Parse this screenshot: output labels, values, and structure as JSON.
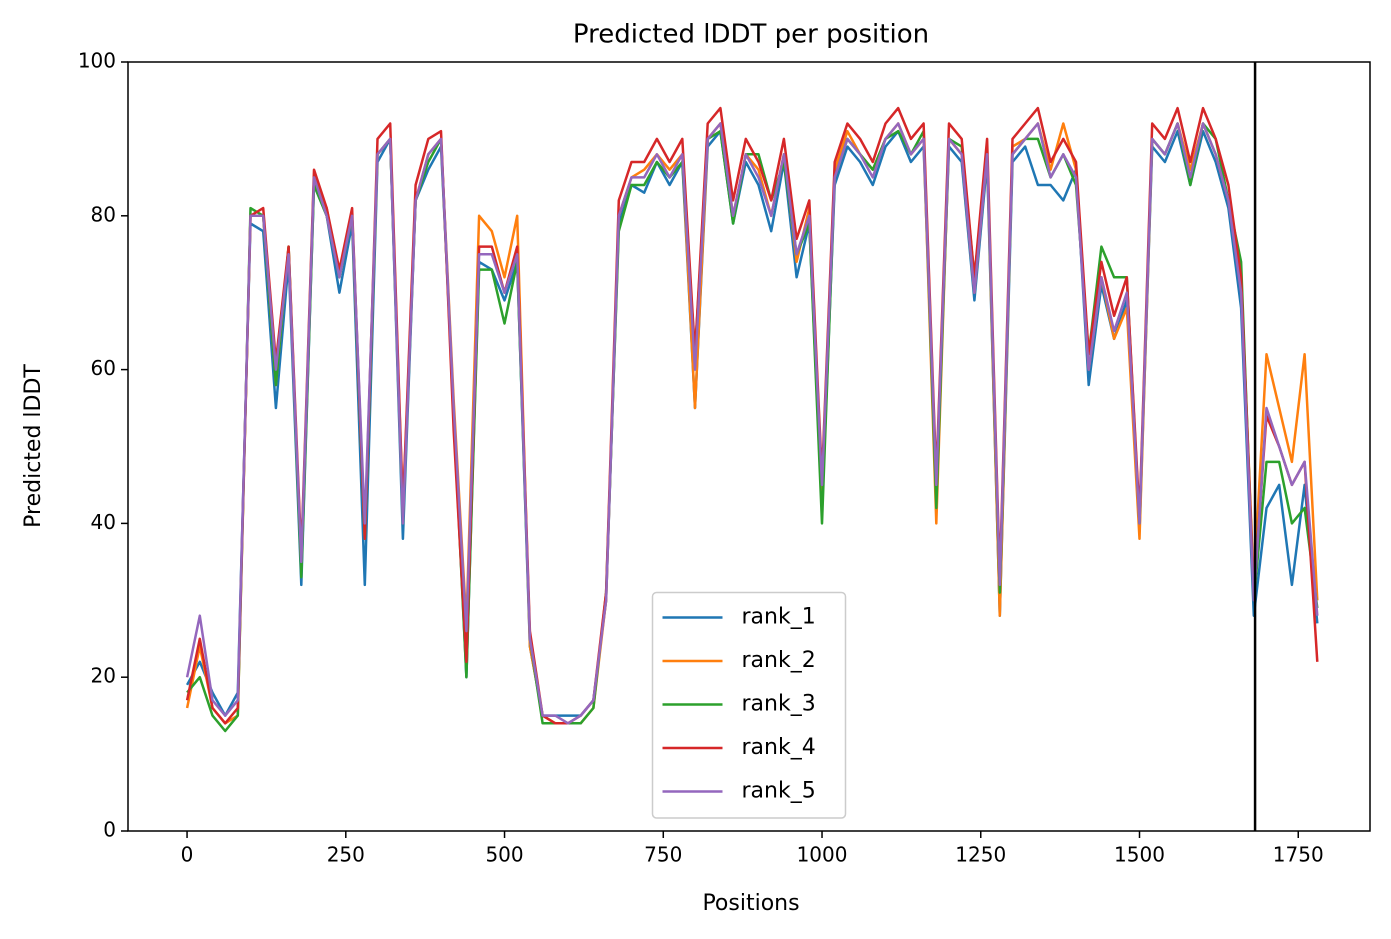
{
  "chart_data": {
    "type": "line",
    "title": "Predicted lDDT per position",
    "x_label": "Positions",
    "y_label": "Predicted lDDT",
    "x": [
      0,
      20,
      40,
      60,
      80,
      100,
      120,
      140,
      160,
      180,
      200,
      220,
      240,
      260,
      280,
      300,
      320,
      340,
      360,
      380,
      400,
      420,
      440,
      460,
      480,
      500,
      520,
      540,
      560,
      580,
      600,
      620,
      640,
      660,
      680,
      700,
      720,
      740,
      760,
      780,
      800,
      820,
      840,
      860,
      880,
      900,
      920,
      940,
      960,
      980,
      1000,
      1020,
      1040,
      1060,
      1080,
      1100,
      1120,
      1140,
      1160,
      1180,
      1200,
      1220,
      1240,
      1260,
      1280,
      1300,
      1320,
      1340,
      1360,
      1380,
      1400,
      1420,
      1440,
      1460,
      1480,
      1500,
      1520,
      1540,
      1560,
      1580,
      1600,
      1620,
      1640,
      1660,
      1680,
      1700,
      1720,
      1740,
      1760,
      1780
    ],
    "series": [
      {
        "name": "rank_1",
        "color": "#1f77b4",
        "values": [
          19,
          22,
          18,
          15,
          18,
          79,
          78,
          55,
          74,
          32,
          84,
          80,
          70,
          79,
          32,
          87,
          90,
          38,
          82,
          86,
          89,
          55,
          20,
          74,
          73,
          69,
          74,
          24,
          15,
          15,
          15,
          15,
          17,
          30,
          79,
          84,
          83,
          87,
          84,
          87,
          55,
          89,
          91,
          79,
          87,
          84,
          78,
          87,
          72,
          79,
          42,
          84,
          89,
          87,
          84,
          89,
          91,
          87,
          89,
          44,
          89,
          87,
          69,
          87,
          28,
          87,
          89,
          84,
          84,
          82,
          86,
          58,
          71,
          64,
          69,
          39,
          89,
          87,
          91,
          84,
          91,
          87,
          81,
          68,
          28,
          42,
          45,
          32,
          45,
          27
        ]
      },
      {
        "name": "rank_2",
        "color": "#ff7f0e",
        "values": [
          16,
          24,
          16,
          14,
          15,
          80,
          80,
          58,
          76,
          34,
          85,
          81,
          72,
          80,
          38,
          88,
          90,
          42,
          82,
          88,
          90,
          56,
          27,
          80,
          78,
          72,
          80,
          24,
          15,
          14,
          14,
          14,
          16,
          30,
          80,
          85,
          86,
          88,
          86,
          88,
          55,
          90,
          92,
          80,
          88,
          86,
          80,
          88,
          74,
          81,
          44,
          86,
          91,
          88,
          86,
          90,
          92,
          88,
          90,
          40,
          90,
          88,
          70,
          88,
          28,
          89,
          90,
          92,
          86,
          92,
          86,
          60,
          72,
          64,
          68,
          38,
          90,
          88,
          92,
          86,
          92,
          88,
          82,
          72,
          32,
          62,
          55,
          48,
          62,
          30
        ]
      },
      {
        "name": "rank_3",
        "color": "#2ca02c",
        "values": [
          18,
          20,
          15,
          13,
          15,
          81,
          80,
          58,
          76,
          33,
          84,
          80,
          72,
          80,
          38,
          88,
          90,
          40,
          82,
          87,
          90,
          54,
          20,
          73,
          73,
          66,
          74,
          25,
          14,
          14,
          14,
          14,
          16,
          31,
          78,
          84,
          84,
          87,
          85,
          87,
          62,
          90,
          91,
          79,
          88,
          88,
          82,
          87,
          75,
          79,
          40,
          85,
          90,
          88,
          86,
          90,
          91,
          88,
          91,
          42,
          90,
          89,
          72,
          88,
          31,
          88,
          90,
          90,
          85,
          88,
          84,
          62,
          76,
          72,
          72,
          40,
          90,
          88,
          92,
          84,
          92,
          90,
          82,
          74,
          30,
          48,
          48,
          40,
          42,
          29
        ]
      },
      {
        "name": "rank_4",
        "color": "#d62728",
        "values": [
          17,
          25,
          16,
          14,
          16,
          80,
          81,
          61,
          76,
          36,
          86,
          81,
          73,
          81,
          38,
          90,
          92,
          42,
          84,
          90,
          91,
          52,
          22,
          76,
          76,
          70,
          76,
          26,
          15,
          14,
          14,
          15,
          17,
          31,
          82,
          87,
          87,
          90,
          87,
          90,
          62,
          92,
          94,
          82,
          90,
          87,
          82,
          90,
          77,
          82,
          46,
          87,
          92,
          90,
          87,
          92,
          94,
          90,
          92,
          46,
          92,
          90,
          72,
          90,
          33,
          90,
          92,
          94,
          87,
          90,
          87,
          62,
          74,
          67,
          72,
          41,
          92,
          90,
          94,
          87,
          94,
          90,
          84,
          72,
          31,
          54,
          50,
          45,
          48,
          22
        ]
      },
      {
        "name": "rank_5",
        "color": "#9467bd",
        "values": [
          20,
          28,
          17,
          15,
          17,
          80,
          80,
          60,
          75,
          35,
          85,
          80,
          72,
          80,
          40,
          88,
          90,
          40,
          82,
          88,
          90,
          55,
          26,
          75,
          75,
          70,
          75,
          25,
          15,
          15,
          14,
          15,
          17,
          30,
          80,
          85,
          85,
          88,
          85,
          88,
          60,
          90,
          92,
          80,
          88,
          85,
          80,
          88,
          75,
          80,
          45,
          85,
          90,
          88,
          85,
          90,
          92,
          88,
          90,
          45,
          90,
          88,
          70,
          88,
          32,
          88,
          90,
          92,
          85,
          88,
          85,
          60,
          72,
          65,
          70,
          40,
          90,
          88,
          92,
          85,
          92,
          88,
          82,
          70,
          30,
          55,
          50,
          45,
          48,
          28
        ]
      }
    ],
    "vline": {
      "value": 1682,
      "color": "#000000"
    },
    "xlim": [
      -93,
      1863
    ],
    "xticks": [
      0,
      250,
      500,
      750,
      1000,
      1250,
      1500,
      1750
    ],
    "ylim": [
      0,
      100
    ],
    "yticks": [
      0,
      20,
      40,
      60,
      80,
      100
    ],
    "grid": false,
    "legend": "lower center"
  }
}
